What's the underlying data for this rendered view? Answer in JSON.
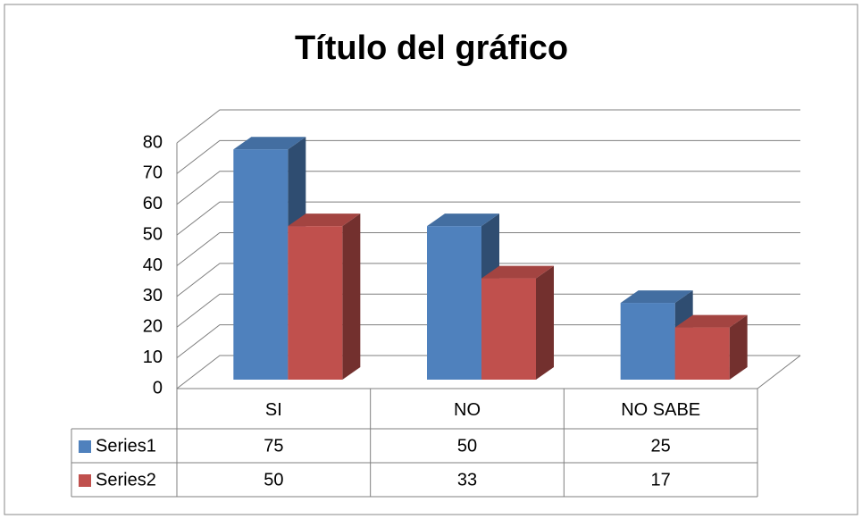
{
  "chart_data": {
    "type": "bar3d",
    "title": "Título del gráfico",
    "categories": [
      "SI",
      "NO",
      "NO SABE"
    ],
    "series": [
      {
        "name": "Series1",
        "color": "#4f81bd",
        "values": [
          75,
          50,
          25
        ]
      },
      {
        "name": "Series2",
        "color": "#c0504d",
        "values": [
          50,
          33,
          17
        ]
      }
    ],
    "ylim": [
      0,
      80
    ],
    "yticks": [
      0,
      10,
      20,
      30,
      40,
      50,
      60,
      70,
      80
    ],
    "grid": true
  }
}
